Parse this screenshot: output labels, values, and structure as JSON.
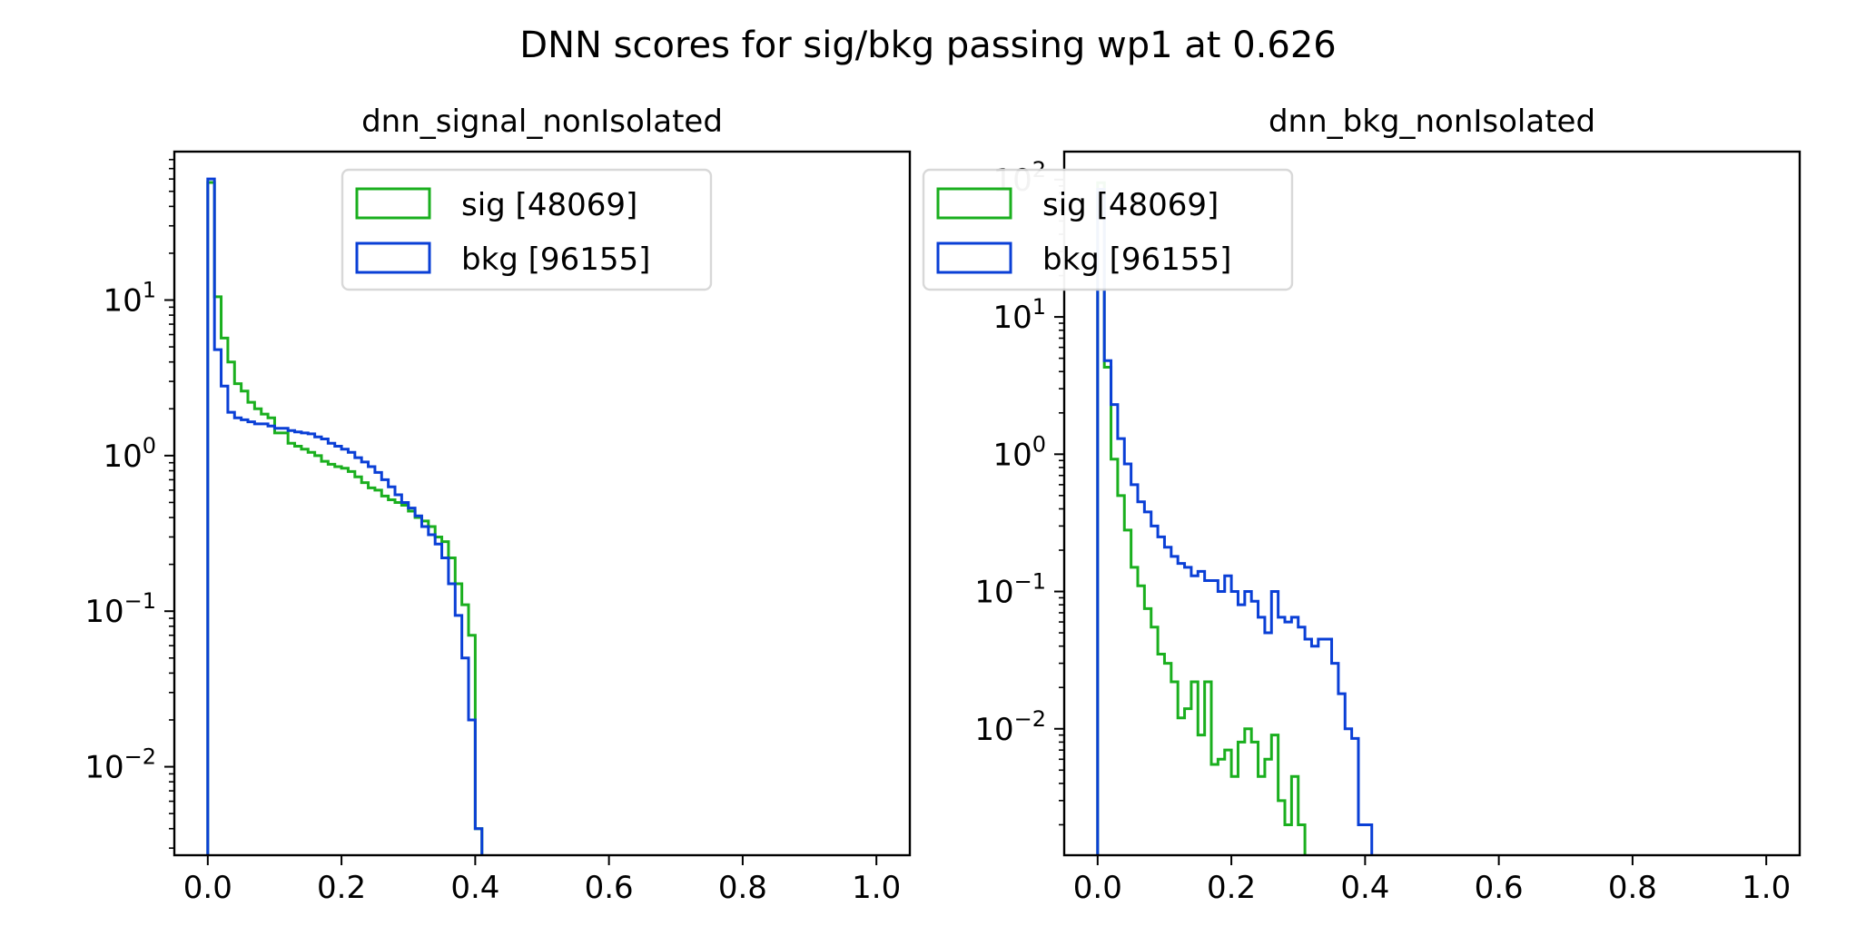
{
  "title": "DNN scores for sig/bkg passing wp1 at 0.626",
  "chart_data": [
    {
      "type": "histogram",
      "title": "dnn_signal_nonIsolated",
      "xlabel": "",
      "ylabel": "",
      "xlim": [
        -0.05,
        1.05
      ],
      "ylim": [
        0.0027,
        90
      ],
      "yscale": "log",
      "xticks": [
        "0.0",
        "0.2",
        "0.4",
        "0.6",
        "0.8",
        "1.0"
      ],
      "yticks": [
        {
          "value": 10,
          "base": "10",
          "exp": "1"
        },
        {
          "value": 1,
          "base": "10",
          "exp": "0"
        },
        {
          "value": 0.1,
          "base": "10",
          "exp": "−1"
        },
        {
          "value": 0.01,
          "base": "10",
          "exp": "−2"
        }
      ],
      "bin_width": 0.01,
      "legend": {
        "location": "upper center"
      },
      "series": [
        {
          "name": "sig [48069]",
          "color": "#1aaf1e",
          "values": [
            57,
            10.5,
            5.7,
            4.0,
            2.9,
            2.6,
            2.2,
            2.0,
            1.85,
            1.75,
            1.4,
            1.4,
            1.2,
            1.15,
            1.1,
            1.05,
            1.0,
            0.92,
            0.88,
            0.85,
            0.83,
            0.79,
            0.73,
            0.67,
            0.62,
            0.6,
            0.55,
            0.52,
            0.5,
            0.48,
            0.44,
            0.4,
            0.38,
            0.35,
            0.3,
            0.28,
            0.22,
            0.15,
            0.11,
            0.07,
            0.004
          ]
        },
        {
          "name": "bkg [96155]",
          "color": "#0a3fd6",
          "values": [
            60,
            4.8,
            2.8,
            1.9,
            1.75,
            1.7,
            1.65,
            1.6,
            1.6,
            1.55,
            1.5,
            1.5,
            1.45,
            1.42,
            1.4,
            1.38,
            1.32,
            1.28,
            1.2,
            1.15,
            1.1,
            1.05,
            0.97,
            0.91,
            0.85,
            0.78,
            0.7,
            0.63,
            0.56,
            0.5,
            0.46,
            0.41,
            0.35,
            0.31,
            0.27,
            0.22,
            0.15,
            0.094,
            0.05,
            0.02,
            0.004
          ]
        }
      ]
    },
    {
      "type": "histogram",
      "title": "dnn_bkg_nonIsolated",
      "xlabel": "",
      "ylabel": "",
      "xlim": [
        -0.05,
        1.05
      ],
      "ylim": [
        0.0012,
        160
      ],
      "yscale": "log",
      "xticks": [
        "0.0",
        "0.2",
        "0.4",
        "0.6",
        "0.8",
        "1.0"
      ],
      "yticks": [
        {
          "value": 100,
          "base": "10",
          "exp": "2"
        },
        {
          "value": 10,
          "base": "10",
          "exp": "1"
        },
        {
          "value": 1,
          "base": "10",
          "exp": "0"
        },
        {
          "value": 0.1,
          "base": "10",
          "exp": "−1"
        },
        {
          "value": 0.01,
          "base": "10",
          "exp": "−2"
        }
      ],
      "bin_width": 0.01,
      "legend": {
        "location": "upper center"
      },
      "series": [
        {
          "name": "sig [48069]",
          "color": "#1aaf1e",
          "values": [
            95,
            4.3,
            0.92,
            0.5,
            0.28,
            0.15,
            0.11,
            0.075,
            0.055,
            0.035,
            0.03,
            0.022,
            0.012,
            0.014,
            0.022,
            0.009,
            0.022,
            0.0055,
            0.006,
            0.007,
            0.0045,
            0.008,
            0.01,
            0.008,
            0.0045,
            0.006,
            0.009,
            0.003,
            0.002,
            0.0045,
            0.002,
            0.001,
            0.001,
            0.001,
            0.001,
            0.001,
            0.001,
            0.001,
            0.001,
            0.001,
            0.001
          ]
        },
        {
          "name": "bkg [96155]",
          "color": "#0a3fd6",
          "values": [
            85,
            4.8,
            2.3,
            1.3,
            0.85,
            0.6,
            0.45,
            0.38,
            0.3,
            0.25,
            0.21,
            0.18,
            0.16,
            0.15,
            0.13,
            0.14,
            0.12,
            0.12,
            0.1,
            0.13,
            0.1,
            0.08,
            0.1,
            0.085,
            0.065,
            0.05,
            0.1,
            0.065,
            0.06,
            0.065,
            0.055,
            0.045,
            0.04,
            0.045,
            0.045,
            0.03,
            0.018,
            0.01,
            0.0085,
            0.002,
            0.002
          ]
        }
      ]
    }
  ]
}
